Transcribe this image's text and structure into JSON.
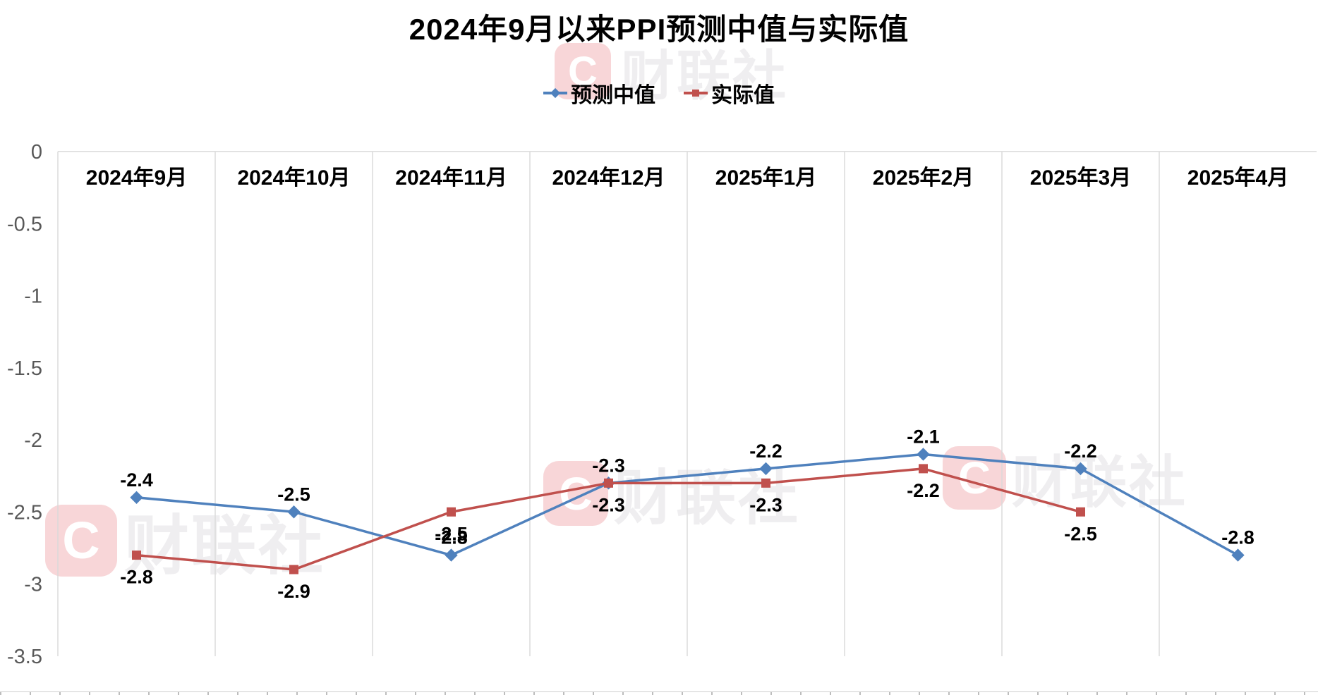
{
  "title": "2024年9月以来PPI预测中值与实际值",
  "watermark": {
    "logo_letter": "C",
    "text": "财联社"
  },
  "chart_data": {
    "type": "line",
    "categories": [
      "2024年9月",
      "2024年10月",
      "2024年11月",
      "2024年12月",
      "2025年1月",
      "2025年2月",
      "2025年3月",
      "2025年4月"
    ],
    "series": [
      {
        "name": "预测中值",
        "color": "#4f81bd",
        "marker": "diamond",
        "label_position": "above",
        "values": [
          -2.4,
          -2.5,
          -2.8,
          -2.3,
          -2.2,
          -2.1,
          -2.2,
          -2.8
        ]
      },
      {
        "name": "实际值",
        "color": "#c0504d",
        "marker": "square",
        "label_position": "below",
        "values": [
          -2.8,
          -2.9,
          -2.5,
          -2.3,
          -2.3,
          -2.2,
          -2.5,
          null
        ]
      }
    ],
    "title": "2024年9月以来PPI预测中值与实际值",
    "xlabel": "",
    "ylabel": "",
    "ylim": [
      -3.5,
      0
    ],
    "yticks": [
      0,
      -0.5,
      -1,
      -1.5,
      -2,
      -2.5,
      -3,
      -3.5
    ],
    "ytick_labels": [
      "0",
      "-0.5",
      "-1",
      "-1.5",
      "-2",
      "-2.5",
      "-3",
      "-3.5"
    ],
    "grid": "vertical-only",
    "legend_position": "top-center",
    "data_labels": "on",
    "colors": {
      "grid": "#d9d9d9",
      "axis_text": "#595959",
      "data_label": "#000000",
      "category_label": "#000000"
    }
  }
}
